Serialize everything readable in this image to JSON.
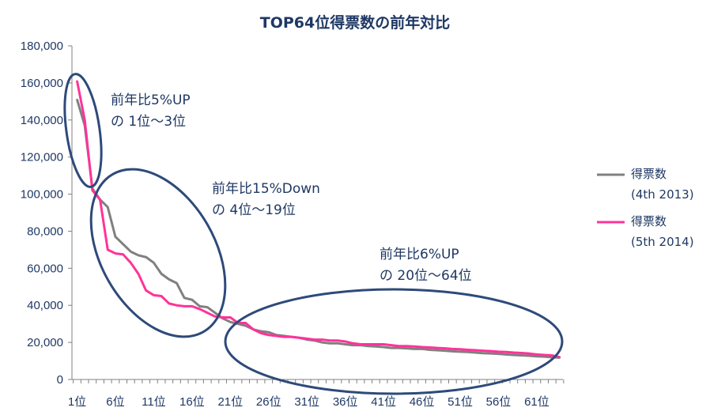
{
  "chart_data": {
    "type": "line",
    "title": "TOP64位得票数の前年対比",
    "xlabel": "",
    "ylabel": "",
    "ylim": [
      0,
      180000
    ],
    "y_ticks": [
      "0",
      "20,000",
      "40,000",
      "60,000",
      "80,000",
      "100,000",
      "120,000",
      "140,000",
      "160,000",
      "180,000"
    ],
    "x_tick_labels": [
      "1位",
      "6位",
      "11位",
      "16位",
      "21位",
      "26位",
      "31位",
      "36位",
      "41位",
      "46位",
      "51位",
      "56位",
      "61位"
    ],
    "x": [
      1,
      2,
      3,
      4,
      5,
      6,
      7,
      8,
      9,
      10,
      11,
      12,
      13,
      14,
      15,
      16,
      17,
      18,
      19,
      20,
      21,
      22,
      23,
      24,
      25,
      26,
      27,
      28,
      29,
      30,
      31,
      32,
      33,
      34,
      35,
      36,
      37,
      38,
      39,
      40,
      41,
      42,
      43,
      44,
      45,
      46,
      47,
      48,
      49,
      50,
      51,
      52,
      53,
      54,
      55,
      56,
      57,
      58,
      59,
      60,
      61,
      62,
      63,
      64
    ],
    "grid": false,
    "legend_position": "right",
    "series": [
      {
        "name": "得票数\n(4th 2013)",
        "color": "#808080",
        "values": [
          151000,
          137000,
          103000,
          97000,
          93000,
          77000,
          73000,
          69000,
          67000,
          66000,
          63000,
          57000,
          54000,
          52000,
          44000,
          43000,
          39500,
          39000,
          36000,
          33000,
          31000,
          30000,
          29000,
          27000,
          26000,
          25500,
          24000,
          23500,
          23000,
          22500,
          21500,
          21000,
          20000,
          19500,
          19500,
          19000,
          18500,
          18500,
          18000,
          17800,
          17500,
          17000,
          17000,
          16800,
          16500,
          16500,
          16000,
          15800,
          15500,
          15200,
          15000,
          14800,
          14500,
          14200,
          14000,
          13800,
          13500,
          13200,
          13000,
          12800,
          12500,
          12300,
          12000,
          11800
        ]
      },
      {
        "name": "得票数\n(5th 2014)",
        "color": "#ff3399",
        "values": [
          161000,
          140000,
          102000,
          97000,
          70000,
          68000,
          67500,
          63000,
          57000,
          48000,
          45500,
          45000,
          41000,
          40000,
          39500,
          39500,
          38000,
          36000,
          34000,
          33500,
          33500,
          30500,
          30500,
          27000,
          25000,
          24000,
          23500,
          23000,
          23000,
          22500,
          22000,
          21500,
          21500,
          21000,
          21000,
          20500,
          19500,
          19000,
          19000,
          19000,
          19000,
          18500,
          18000,
          18000,
          17800,
          17500,
          17300,
          17000,
          16800,
          16500,
          16300,
          16000,
          15800,
          15500,
          15300,
          15000,
          14800,
          14500,
          14300,
          14000,
          13500,
          13200,
          13000,
          12000
        ]
      }
    ],
    "annotations": [
      {
        "lines": [
          "前年比5%UP",
          "の 1位～3位"
        ]
      },
      {
        "lines": [
          "前年比15%Down",
          "の 4位～19位"
        ]
      },
      {
        "lines": [
          "前年比6%UP",
          "の 20位～64位"
        ]
      }
    ]
  }
}
